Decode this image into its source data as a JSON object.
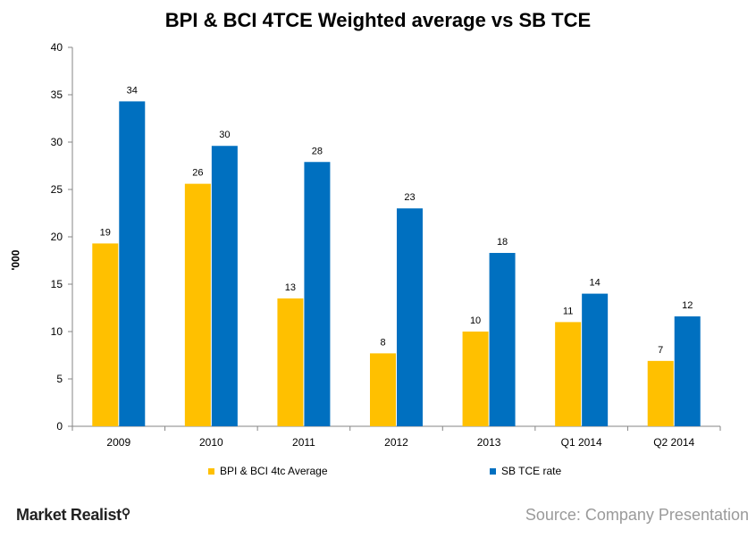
{
  "chart_data": {
    "type": "bar",
    "title": "BPI & BCI 4TCE Weighted average vs SB TCE",
    "ylabel": "'000",
    "xlabel": "",
    "categories": [
      "2009",
      "2010",
      "2011",
      "2012",
      "2013",
      "Q1 2014",
      "Q2 2014"
    ],
    "series": [
      {
        "name": "BPI & BCI 4tc Average",
        "color": "#FFC000",
        "values": [
          19.3,
          25.6,
          13.5,
          7.7,
          10.0,
          11.0,
          6.9
        ],
        "labels": [
          "19",
          "26",
          "13",
          "8",
          "10",
          "11",
          "7"
        ]
      },
      {
        "name": "SB TCE rate",
        "color": "#0070C0",
        "values": [
          34.3,
          29.6,
          27.9,
          23.0,
          18.3,
          14.0,
          11.6
        ],
        "labels": [
          "34",
          "30",
          "28",
          "23",
          "18",
          "14",
          "12"
        ]
      }
    ],
    "ylim": [
      0,
      40
    ],
    "yticks": [
      "0",
      "5",
      "10",
      "15",
      "20",
      "25",
      "30",
      "35",
      "40"
    ],
    "grid": false,
    "legend_position": "bottom"
  },
  "branding": {
    "logo_text": "Market Realist",
    "source_text": "Source: Company Presentation"
  }
}
